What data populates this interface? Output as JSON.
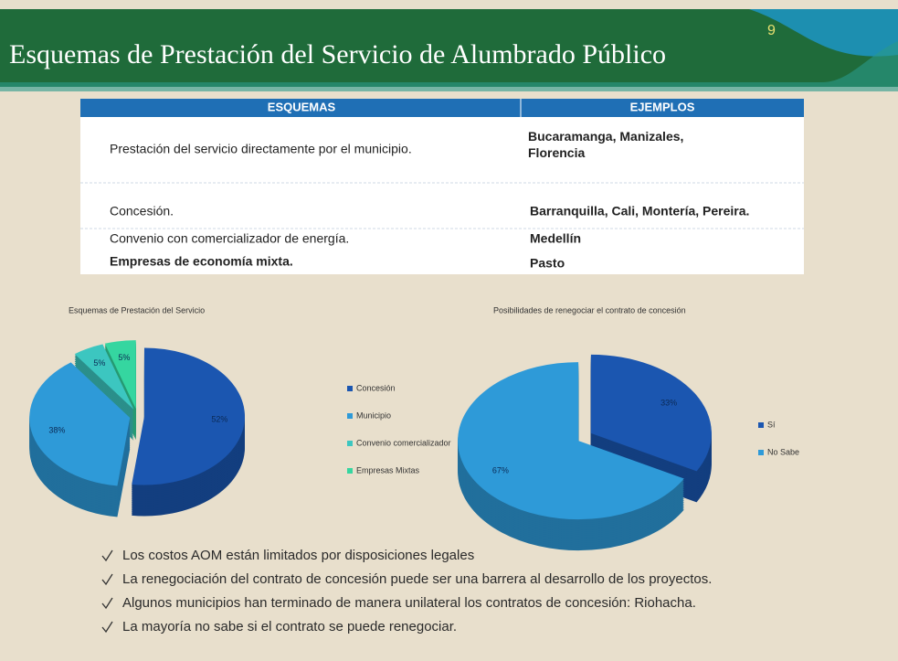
{
  "title": "Esquemas de Prestación del Servicio de Alumbrado Público",
  "page_number": "9",
  "table": {
    "header": [
      "ESQUEMAS",
      "EJEMPLOS"
    ],
    "rows": [
      [
        "Prestación del servicio directamente por el municipio.",
        "Bucaramanga, Manizales, Florencia"
      ],
      [
        "Concesión.",
        "Barranquilla, Cali, Montería, Pereira."
      ],
      [
        "Convenio con comercializador de energía.",
        "Medellín"
      ],
      [
        "Empresas de economía mixta.",
        "Pasto"
      ]
    ]
  },
  "bullets": [
    "Los costos AOM están limitados por disposiciones legales",
    "La renegociación del contrato de concesión puede ser una barrera al desarrollo de los proyectos.",
    "Algunos municipios han terminado de manera unilateral los contratos de concesión: Riohacha.",
    "La mayoría no sabe si el contrato se puede renegociar."
  ],
  "chart_data": [
    {
      "type": "pie",
      "title": "Esquemas de Prestación del Servicio",
      "categories": [
        "Concesión",
        "Municipio",
        "Convenio comercializador",
        "Empresas Mixtas"
      ],
      "values": [
        52,
        38,
        5,
        5
      ],
      "value_labels": [
        "52%",
        "38%",
        "5%",
        "5%"
      ],
      "colors": [
        "#1b56b0",
        "#2e9ad8",
        "#3cc6c0",
        "#35d6a0"
      ]
    },
    {
      "type": "pie",
      "title": "Posibilidades de renegociar el contrato de concesión",
      "categories": [
        "Sí",
        "No Sabe"
      ],
      "values": [
        33,
        67
      ],
      "value_labels": [
        "33%",
        "67%"
      ],
      "colors": [
        "#1b56b0",
        "#2e9ad8"
      ]
    }
  ]
}
